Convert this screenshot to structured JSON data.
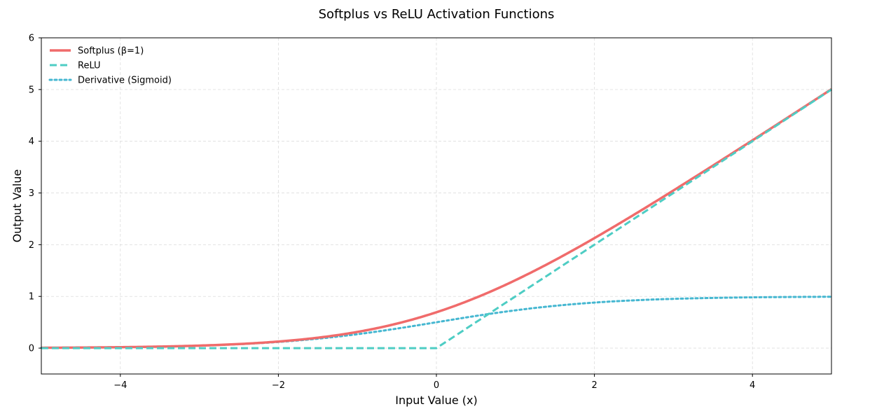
{
  "chart_data": {
    "type": "line",
    "title": "Softplus vs ReLU Activation Functions",
    "xlabel": "Input Value (x)",
    "ylabel": "Output Value",
    "xlim": [
      -5,
      5
    ],
    "ylim": [
      -0.5,
      6
    ],
    "xticks": [
      -4,
      -2,
      0,
      2,
      4
    ],
    "xtick_labels": [
      "−4",
      "−2",
      "0",
      "2",
      "4"
    ],
    "yticks": [
      0,
      1,
      2,
      3,
      4,
      5,
      6
    ],
    "ytick_labels": [
      "0",
      "1",
      "2",
      "3",
      "4",
      "5",
      "6"
    ],
    "grid": true,
    "legend_position": "top-left",
    "series": [
      {
        "name": "Softplus (β=1)",
        "color": "#F06B6B",
        "style": "solid",
        "x": [
          -5,
          -4.5,
          -4,
          -3.5,
          -3,
          -2.5,
          -2,
          -1.5,
          -1,
          -0.5,
          0,
          0.5,
          1,
          1.5,
          2,
          2.5,
          3,
          3.5,
          4,
          4.5,
          5
        ],
        "y": [
          0.0067,
          0.011,
          0.0181,
          0.0298,
          0.0486,
          0.0789,
          0.1269,
          0.2014,
          0.3133,
          0.4741,
          0.6931,
          0.9741,
          1.3133,
          1.7014,
          2.1269,
          2.5789,
          3.0486,
          3.5298,
          4.0181,
          4.511,
          5.0067
        ]
      },
      {
        "name": "ReLU",
        "color": "#4ECDC4",
        "style": "dashed",
        "x": [
          -5,
          0,
          5
        ],
        "y": [
          0,
          0,
          5
        ]
      },
      {
        "name": "Derivative (Sigmoid)",
        "color": "#45B7D1",
        "style": "dotted",
        "x": [
          -5,
          -4.5,
          -4,
          -3.5,
          -3,
          -2.5,
          -2,
          -1.5,
          -1,
          -0.5,
          0,
          0.5,
          1,
          1.5,
          2,
          2.5,
          3,
          3.5,
          4,
          4.5,
          5
        ],
        "y": [
          0.0067,
          0.011,
          0.018,
          0.0293,
          0.0474,
          0.0759,
          0.1192,
          0.1824,
          0.2689,
          0.3775,
          0.5,
          0.6225,
          0.7311,
          0.8176,
          0.8808,
          0.9241,
          0.9526,
          0.9707,
          0.982,
          0.989,
          0.9933
        ]
      }
    ]
  }
}
